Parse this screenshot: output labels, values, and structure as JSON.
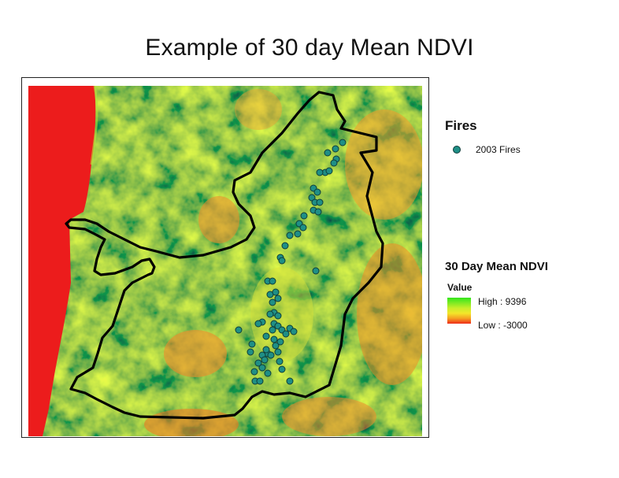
{
  "title": "Example of 30 day Mean NDVI",
  "legend": {
    "fires_title": "Fires",
    "fires_item": "2003 Fires",
    "ndvi_title": "30 Day Mean NDVI",
    "value_label": "Value",
    "high_label": "High : 9396",
    "low_label": "Low : -3000"
  },
  "colors": {
    "fire_fill": "#1f8f86",
    "fire_stroke": "#0e3d3a",
    "ndvi_high": "#33e61c",
    "ndvi_mid": "#f3e62a",
    "ndvi_low": "#ee2a1a",
    "boundary": "#000000"
  }
}
